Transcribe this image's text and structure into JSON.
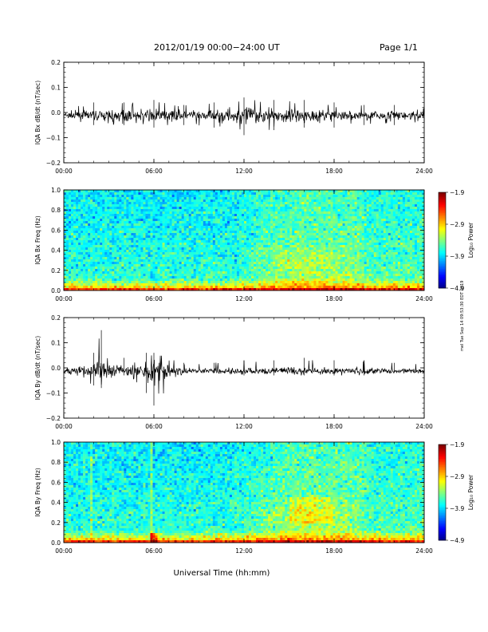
{
  "header": {
    "date_range": "2012/01/19   00:00−24:00 UT",
    "page": "Page 1/1"
  },
  "side_note": "mel Tue Sep 14 09:53:30 EDT 2019",
  "chart_data": [
    {
      "type": "line",
      "ylabel": "IQA Bx dB/dt (nT/sec)",
      "ylim": [
        -0.2,
        0.2
      ],
      "yticks": [
        "0.2",
        "0.1",
        "0.0",
        "−0.1",
        "−0.2"
      ],
      "xlim": [
        0,
        24
      ],
      "xticks": [
        "00:00",
        "06:00",
        "12:00",
        "18:00",
        "24:00"
      ],
      "series": [
        {
          "x": [
            0,
            2,
            4,
            6,
            8,
            10,
            12,
            14,
            16,
            18,
            20,
            22,
            24
          ],
          "y_max": [
            0.02,
            0.04,
            0.04,
            0.05,
            0.03,
            0.04,
            0.06,
            0.05,
            0.05,
            0.04,
            0.03,
            0.03,
            0.02
          ],
          "y_min": [
            -0.04,
            -0.05,
            -0.05,
            -0.06,
            -0.05,
            -0.06,
            -0.09,
            -0.07,
            -0.06,
            -0.06,
            -0.05,
            -0.05,
            -0.04
          ]
        }
      ]
    },
    {
      "type": "heatmap",
      "ylabel": "IQA Bx Freq (Hz)",
      "ylim": [
        0,
        1
      ],
      "yticks": [
        "1.0",
        "0.8",
        "0.6",
        "0.4",
        "0.2",
        "0.0"
      ],
      "xlim": [
        0,
        24
      ],
      "xticks": [
        "00:00",
        "06:00",
        "12:00",
        "18:00",
        "24:00"
      ],
      "colorbar": {
        "label": "Log₁₀ Power",
        "ticks": [
          "−1.9",
          "−2.9",
          "−3.9",
          "−4.9"
        ],
        "range": [
          -4.9,
          -1.9
        ]
      }
    },
    {
      "type": "line",
      "ylabel": "IQA By dB/dt (nT/sec)",
      "ylim": [
        -0.2,
        0.2
      ],
      "yticks": [
        "0.2",
        "0.1",
        "0.0",
        "−0.1",
        "−0.2"
      ],
      "xlim": [
        0,
        24
      ],
      "xticks": [
        "00:00",
        "06:00",
        "12:00",
        "18:00",
        "24:00"
      ],
      "series": [
        {
          "x": [
            0,
            2,
            2.5,
            4,
            5.5,
            6,
            8,
            10,
            12,
            14,
            16,
            18,
            20,
            22,
            24
          ],
          "y_max": [
            0.02,
            0.06,
            0.15,
            0.04,
            0.06,
            0.06,
            0.02,
            0.02,
            0.03,
            0.03,
            0.04,
            0.03,
            0.03,
            0.02,
            0.02
          ],
          "y_min": [
            -0.02,
            -0.07,
            -0.08,
            -0.03,
            -0.1,
            -0.15,
            -0.02,
            -0.02,
            -0.03,
            -0.03,
            -0.03,
            -0.03,
            -0.03,
            -0.02,
            -0.02
          ]
        }
      ]
    },
    {
      "type": "heatmap",
      "ylabel": "IQA By Freq (Hz)",
      "xlabel": "Universal Time (hh:mm)",
      "ylim": [
        0,
        1
      ],
      "yticks": [
        "1.0",
        "0.8",
        "0.6",
        "0.4",
        "0.2",
        "0.0"
      ],
      "xlim": [
        0,
        24
      ],
      "xticks": [
        "00:00",
        "06:00",
        "12:00",
        "18:00",
        "24:00"
      ],
      "colorbar": {
        "label": "Log₁₀ Power",
        "ticks": [
          "−1.9",
          "−2.9",
          "−3.9",
          "−4.9"
        ],
        "range": [
          -4.9,
          -1.9
        ]
      }
    }
  ]
}
